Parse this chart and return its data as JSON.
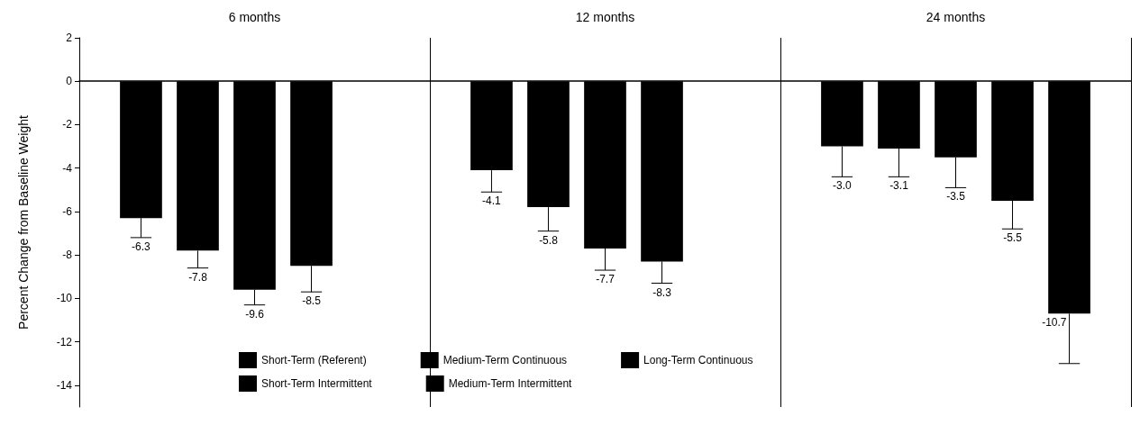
{
  "chart_data": {
    "type": "bar",
    "ylabel": "Percent Change from Baseline Weight",
    "categories": [
      "6 months",
      "12 months",
      "24 months"
    ],
    "series": [
      {
        "name": "Short-Term (Referent)",
        "color": "#000000",
        "values": [
          -6.3,
          -4.1,
          -3.0
        ],
        "errors": [
          [
            -7.2,
            -6.3
          ],
          [
            -5.1,
            -4.1
          ],
          [
            -4.4,
            -3.0
          ]
        ],
        "value_labels": [
          "-6.3",
          "-4.1",
          "-3.0"
        ]
      },
      {
        "name": "Short-Term Intermittent",
        "color": "#000000",
        "values": [
          -7.8,
          -5.8,
          -3.1
        ],
        "errors": [
          [
            -8.6,
            -7.8
          ],
          [
            -6.9,
            -5.8
          ],
          [
            -4.4,
            -3.1
          ]
        ],
        "value_labels": [
          "-7.8",
          "-5.8",
          "-3.1"
        ]
      },
      {
        "name": "Medium-Term Continuous",
        "color": "#000000",
        "values": [
          -9.6,
          -7.7,
          -3.5
        ],
        "errors": [
          [
            -10.3,
            -9.6
          ],
          [
            -8.7,
            -7.7
          ],
          [
            -4.9,
            -3.5
          ]
        ],
        "value_labels": [
          "-9.6",
          "-7.7",
          "-3.5"
        ]
      },
      {
        "name": "Medium-Term Intermittent",
        "color": "#000000",
        "values": [
          -8.5,
          -8.3,
          -5.5
        ],
        "errors": [
          [
            -9.7,
            -8.5
          ],
          [
            -9.3,
            -8.3
          ],
          [
            -6.8,
            -5.5
          ]
        ],
        "value_labels": [
          "-8.5",
          "-8.3",
          "-5.5"
        ]
      },
      {
        "name": "Long-Term Continuous",
        "color": "#000000",
        "values": [
          null,
          null,
          -10.7
        ],
        "errors": [
          null,
          null,
          [
            -13.0,
            -10.7
          ]
        ],
        "value_labels": [
          null,
          null,
          "-10.7"
        ]
      }
    ],
    "ylim": [
      -15,
      2
    ],
    "yticks": [
      -14,
      -12,
      -10,
      -8,
      -6,
      -4,
      -2,
      0,
      2
    ],
    "grid": "x",
    "legend": "bottom"
  }
}
